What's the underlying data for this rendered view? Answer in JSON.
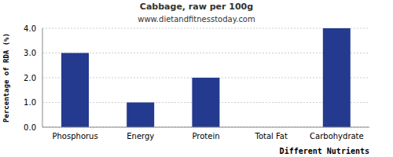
{
  "chart_data": {
    "type": "bar",
    "title": "Cabbage, raw per 100g",
    "subtitle": "www.dietandfitnesstoday.com",
    "x_label": "Different Nutrients",
    "y_label": "Percentage of RDA (%)",
    "categories": [
      "Phosphorus",
      "Energy",
      "Protein",
      "Total Fat",
      "Carbohydrate"
    ],
    "values": [
      3,
      1,
      2,
      0,
      4
    ],
    "color": "#233a8e",
    "ylim": [
      0,
      4
    ],
    "yticks": [
      {
        "value": 0,
        "label": "0.0"
      },
      {
        "value": 1,
        "label": "1.0"
      },
      {
        "value": 2,
        "label": "2.0"
      },
      {
        "value": 3,
        "label": "3.0"
      },
      {
        "value": 4,
        "label": "4.0"
      }
    ],
    "grid": true
  }
}
